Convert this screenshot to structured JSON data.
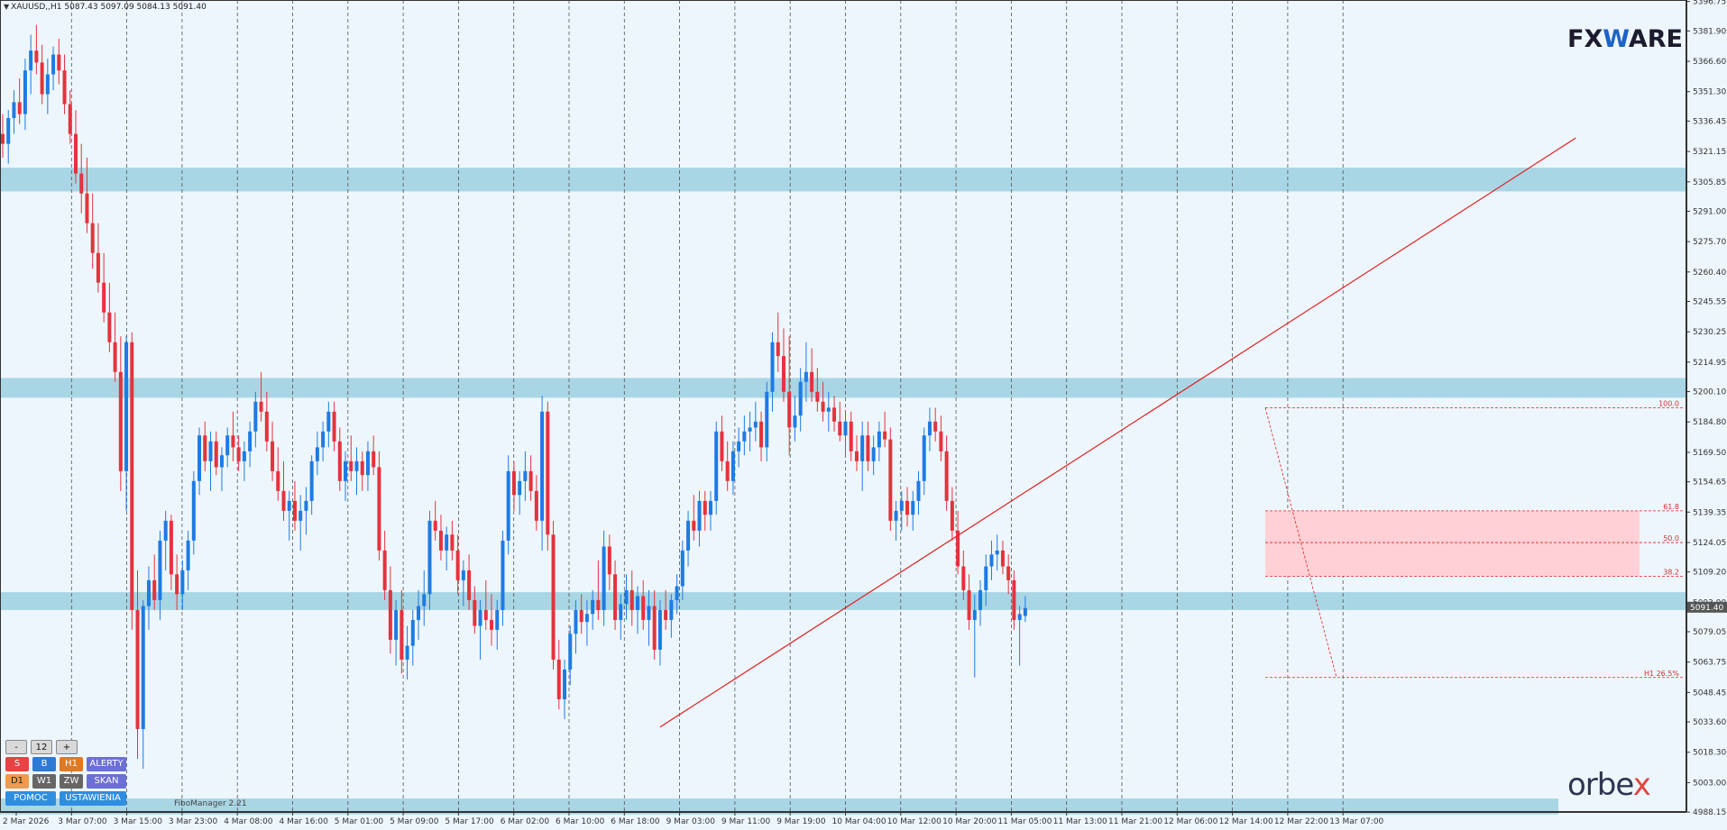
{
  "header": {
    "symbol": "XAUUSD,,H1",
    "ohlc": "5087.43 5097.09 5084.13 5091.40"
  },
  "logos": {
    "brand_top": "FXWARE",
    "brand_top_parts": [
      "FX",
      "W",
      "ARE"
    ],
    "brand_bottom": "orbex",
    "brand_bottom_parts": [
      "orbe",
      "x"
    ]
  },
  "panel": {
    "row1": [
      "-",
      "12",
      "+"
    ],
    "row2": [
      "S",
      "B",
      "H1",
      "ALERTY"
    ],
    "row3": [
      "D1",
      "W1",
      "ZW",
      "SKAN"
    ],
    "row4": [
      "POMOC",
      "USTAWIENIA"
    ]
  },
  "fibo_manager_label": "FiboManager 2.21",
  "colors": {
    "bull": "#1e7be3",
    "bear": "#e5323d",
    "zone": "#a9d6e5",
    "fibo_zone": "#ffd1d6",
    "trendline": "#e02020",
    "grid": "#444444"
  },
  "chart_data": {
    "type": "candlestick",
    "symbol": "XAUUSD",
    "timeframe": "H1",
    "ylim": [
      4988.2,
      5397.5
    ],
    "y_ticks": [
      "5396.75",
      "5381.90",
      "5366.60",
      "5351.30",
      "5336.45",
      "5321.15",
      "5305.85",
      "5291.00",
      "5275.70",
      "5260.40",
      "5245.55",
      "5230.25",
      "5214.95",
      "5200.10",
      "5184.80",
      "5169.50",
      "5154.65",
      "5139.35",
      "5124.05",
      "5109.20",
      "5093.90",
      "5079.05",
      "5063.75",
      "5048.45",
      "5033.60",
      "5018.30",
      "5003.00",
      "4988.15"
    ],
    "current_price": "5091.40",
    "x_labels": [
      "2 Mar 2026",
      "3 Mar 07:00",
      "3 Mar 15:00",
      "3 Mar 23:00",
      "4 Mar 08:00",
      "4 Mar 16:00",
      "5 Mar 01:00",
      "5 Mar 09:00",
      "5 Mar 17:00",
      "6 Mar 02:00",
      "6 Mar 10:00",
      "6 Mar 18:00",
      "9 Mar 03:00",
      "9 Mar 11:00",
      "9 Mar 19:00",
      "10 Mar 04:00",
      "10 Mar 12:00",
      "10 Mar 20:00",
      "11 Mar 05:00",
      "11 Mar 13:00",
      "11 Mar 21:00",
      "12 Mar 06:00",
      "12 Mar 14:00",
      "12 Mar 22:00",
      "13 Mar 07:00"
    ],
    "grid": "vertical-dashed",
    "zones": [
      {
        "low": 5301,
        "high": 5313
      },
      {
        "low": 5197,
        "high": 5207
      },
      {
        "low": 5090,
        "high": 5099
      },
      {
        "low": 4987,
        "high": 4995
      }
    ],
    "fib_levels": [
      {
        "label": "100.0",
        "value": 5192
      },
      {
        "label": "61.8",
        "value": 5140
      },
      {
        "label": "50.0",
        "value": 5124
      },
      {
        "label": "38.2",
        "value": 5107
      },
      {
        "label": "H1 26.5%",
        "value": 5056
      }
    ],
    "fib_zone": {
      "low": 5107,
      "high": 5140
    },
    "trendline": [
      {
        "x": 5031,
        "i": 117
      },
      {
        "x": 5328,
        "i": 280
      }
    ],
    "candles": [
      [
        5330,
        5340,
        5318,
        5325
      ],
      [
        5325,
        5342,
        5315,
        5338
      ],
      [
        5338,
        5352,
        5330,
        5346
      ],
      [
        5346,
        5358,
        5335,
        5340
      ],
      [
        5340,
        5368,
        5332,
        5362
      ],
      [
        5362,
        5380,
        5350,
        5372
      ],
      [
        5372,
        5385,
        5360,
        5366
      ],
      [
        5366,
        5375,
        5345,
        5350
      ],
      [
        5350,
        5368,
        5340,
        5360
      ],
      [
        5360,
        5374,
        5352,
        5370
      ],
      [
        5370,
        5378,
        5355,
        5362
      ],
      [
        5362,
        5370,
        5340,
        5345
      ],
      [
        5345,
        5352,
        5325,
        5330
      ],
      [
        5330,
        5342,
        5305,
        5310
      ],
      [
        5310,
        5325,
        5290,
        5300
      ],
      [
        5300,
        5318,
        5280,
        5285
      ],
      [
        5285,
        5300,
        5262,
        5270
      ],
      [
        5270,
        5285,
        5250,
        5255
      ],
      [
        5255,
        5270,
        5235,
        5240
      ],
      [
        5240,
        5255,
        5220,
        5225
      ],
      [
        5225,
        5240,
        5205,
        5210
      ],
      [
        5210,
        5228,
        5150,
        5160
      ],
      [
        5160,
        5228,
        5140,
        5225
      ],
      [
        5225,
        5230,
        5080,
        5090
      ],
      [
        5090,
        5110,
        5015,
        5030
      ],
      [
        5030,
        5095,
        5010,
        5092
      ],
      [
        5092,
        5112,
        5080,
        5105
      ],
      [
        5105,
        5118,
        5090,
        5095
      ],
      [
        5095,
        5130,
        5085,
        5125
      ],
      [
        5125,
        5140,
        5110,
        5135
      ],
      [
        5135,
        5138,
        5100,
        5108
      ],
      [
        5108,
        5118,
        5090,
        5098
      ],
      [
        5098,
        5115,
        5090,
        5110
      ],
      [
        5110,
        5130,
        5100,
        5125
      ],
      [
        5125,
        5160,
        5118,
        5155
      ],
      [
        5155,
        5182,
        5148,
        5178
      ],
      [
        5178,
        5185,
        5160,
        5165
      ],
      [
        5165,
        5180,
        5150,
        5175
      ],
      [
        5175,
        5180,
        5158,
        5162
      ],
      [
        5162,
        5172,
        5150,
        5168
      ],
      [
        5168,
        5182,
        5162,
        5178
      ],
      [
        5178,
        5190,
        5165,
        5172
      ],
      [
        5172,
        5178,
        5160,
        5165
      ],
      [
        5165,
        5175,
        5155,
        5170
      ],
      [
        5170,
        5185,
        5162,
        5180
      ],
      [
        5180,
        5200,
        5172,
        5195
      ],
      [
        5195,
        5210,
        5185,
        5190
      ],
      [
        5190,
        5200,
        5170,
        5175
      ],
      [
        5175,
        5185,
        5155,
        5160
      ],
      [
        5160,
        5172,
        5145,
        5150
      ],
      [
        5150,
        5165,
        5135,
        5140
      ],
      [
        5140,
        5150,
        5125,
        5145
      ],
      [
        5145,
        5155,
        5130,
        5135
      ],
      [
        5135,
        5148,
        5120,
        5140
      ],
      [
        5140,
        5152,
        5128,
        5145
      ],
      [
        5145,
        5168,
        5138,
        5165
      ],
      [
        5165,
        5180,
        5158,
        5172
      ],
      [
        5172,
        5185,
        5165,
        5180
      ],
      [
        5180,
        5195,
        5172,
        5190
      ],
      [
        5190,
        5195,
        5170,
        5175
      ],
      [
        5175,
        5182,
        5150,
        5155
      ],
      [
        5155,
        5170,
        5145,
        5165
      ],
      [
        5165,
        5178,
        5155,
        5160
      ],
      [
        5160,
        5172,
        5148,
        5165
      ],
      [
        5165,
        5170,
        5150,
        5158
      ],
      [
        5158,
        5175,
        5150,
        5170
      ],
      [
        5170,
        5178,
        5158,
        5162
      ],
      [
        5162,
        5170,
        5115,
        5120
      ],
      [
        5120,
        5130,
        5095,
        5100
      ],
      [
        5100,
        5112,
        5068,
        5075
      ],
      [
        5075,
        5095,
        5062,
        5090
      ],
      [
        5090,
        5100,
        5058,
        5065
      ],
      [
        5065,
        5082,
        5055,
        5072
      ],
      [
        5072,
        5090,
        5062,
        5085
      ],
      [
        5085,
        5100,
        5075,
        5092
      ],
      [
        5092,
        5110,
        5082,
        5098
      ],
      [
        5098,
        5140,
        5090,
        5135
      ],
      [
        5135,
        5145,
        5125,
        5130
      ],
      [
        5130,
        5138,
        5115,
        5120
      ],
      [
        5120,
        5132,
        5110,
        5128
      ],
      [
        5128,
        5135,
        5115,
        5120
      ],
      [
        5120,
        5128,
        5098,
        5105
      ],
      [
        5105,
        5115,
        5092,
        5110
      ],
      [
        5110,
        5118,
        5090,
        5095
      ],
      [
        5095,
        5102,
        5078,
        5082
      ],
      [
        5082,
        5095,
        5065,
        5090
      ],
      [
        5090,
        5105,
        5080,
        5085
      ],
      [
        5085,
        5098,
        5072,
        5080
      ],
      [
        5080,
        5095,
        5070,
        5090
      ],
      [
        5090,
        5130,
        5082,
        5125
      ],
      [
        5125,
        5168,
        5118,
        5160
      ],
      [
        5160,
        5165,
        5140,
        5148
      ],
      [
        5148,
        5160,
        5138,
        5155
      ],
      [
        5155,
        5170,
        5145,
        5160
      ],
      [
        5160,
        5168,
        5145,
        5150
      ],
      [
        5150,
        5158,
        5130,
        5135
      ],
      [
        5135,
        5198,
        5120,
        5190
      ],
      [
        5190,
        5195,
        5120,
        5128
      ],
      [
        5128,
        5135,
        5060,
        5065
      ],
      [
        5065,
        5075,
        5040,
        5045
      ],
      [
        5045,
        5065,
        5035,
        5060
      ],
      [
        5060,
        5082,
        5052,
        5078
      ],
      [
        5078,
        5095,
        5068,
        5090
      ],
      [
        5090,
        5098,
        5078,
        5084
      ],
      [
        5084,
        5095,
        5072,
        5088
      ],
      [
        5088,
        5100,
        5080,
        5095
      ],
      [
        5095,
        5115,
        5085,
        5090
      ],
      [
        5090,
        5130,
        5082,
        5122
      ],
      [
        5122,
        5128,
        5100,
        5108
      ],
      [
        5108,
        5115,
        5080,
        5085
      ],
      [
        5085,
        5098,
        5075,
        5093
      ],
      [
        5093,
        5108,
        5085,
        5100
      ],
      [
        5100,
        5110,
        5082,
        5090
      ],
      [
        5090,
        5102,
        5078,
        5097
      ],
      [
        5097,
        5105,
        5080,
        5085
      ],
      [
        5085,
        5100,
        5072,
        5092
      ],
      [
        5092,
        5100,
        5065,
        5070
      ],
      [
        5070,
        5095,
        5062,
        5090
      ],
      [
        5090,
        5100,
        5080,
        5085
      ],
      [
        5085,
        5098,
        5076,
        5095
      ],
      [
        5095,
        5108,
        5088,
        5102
      ],
      [
        5102,
        5125,
        5095,
        5120
      ],
      [
        5120,
        5140,
        5112,
        5135
      ],
      [
        5135,
        5148,
        5125,
        5130
      ],
      [
        5130,
        5150,
        5122,
        5145
      ],
      [
        5145,
        5150,
        5130,
        5138
      ],
      [
        5138,
        5150,
        5130,
        5145
      ],
      [
        5145,
        5185,
        5138,
        5180
      ],
      [
        5180,
        5188,
        5160,
        5165
      ],
      [
        5165,
        5175,
        5150,
        5155
      ],
      [
        5155,
        5175,
        5148,
        5170
      ],
      [
        5170,
        5182,
        5162,
        5175
      ],
      [
        5175,
        5188,
        5168,
        5180
      ],
      [
        5180,
        5190,
        5170,
        5182
      ],
      [
        5182,
        5195,
        5175,
        5185
      ],
      [
        5185,
        5190,
        5165,
        5172
      ],
      [
        5172,
        5205,
        5165,
        5200
      ],
      [
        5200,
        5230,
        5190,
        5225
      ],
      [
        5225,
        5240,
        5210,
        5218
      ],
      [
        5218,
        5232,
        5195,
        5200
      ],
      [
        5200,
        5228,
        5168,
        5182
      ],
      [
        5182,
        5198,
        5175,
        5188
      ],
      [
        5188,
        5212,
        5180,
        5205
      ],
      [
        5205,
        5225,
        5195,
        5210
      ],
      [
        5210,
        5222,
        5195,
        5200
      ],
      [
        5200,
        5212,
        5190,
        5195
      ],
      [
        5195,
        5205,
        5185,
        5190
      ],
      [
        5190,
        5200,
        5180,
        5192
      ],
      [
        5192,
        5198,
        5180,
        5185
      ],
      [
        5185,
        5195,
        5175,
        5178
      ],
      [
        5178,
        5190,
        5168,
        5185
      ],
      [
        5185,
        5190,
        5165,
        5170
      ],
      [
        5170,
        5178,
        5160,
        5165
      ],
      [
        5165,
        5185,
        5150,
        5178
      ],
      [
        5178,
        5185,
        5160,
        5165
      ],
      [
        5165,
        5178,
        5158,
        5172
      ],
      [
        5172,
        5185,
        5165,
        5180
      ],
      [
        5180,
        5190,
        5172,
        5176
      ],
      [
        5176,
        5182,
        5130,
        5135
      ],
      [
        5135,
        5145,
        5125,
        5140
      ],
      [
        5140,
        5150,
        5130,
        5145
      ],
      [
        5145,
        5152,
        5132,
        5138
      ],
      [
        5138,
        5150,
        5130,
        5145
      ],
      [
        5145,
        5160,
        5138,
        5155
      ],
      [
        5155,
        5182,
        5148,
        5178
      ],
      [
        5178,
        5192,
        5170,
        5185
      ],
      [
        5185,
        5192,
        5175,
        5180
      ],
      [
        5180,
        5188,
        5165,
        5170
      ],
      [
        5170,
        5178,
        5140,
        5145
      ],
      [
        5145,
        5152,
        5125,
        5130
      ],
      [
        5130,
        5140,
        5108,
        5112
      ],
      [
        5112,
        5120,
        5095,
        5100
      ],
      [
        5100,
        5108,
        5080,
        5085
      ],
      [
        5085,
        5098,
        5056,
        5090
      ],
      [
        5090,
        5105,
        5082,
        5100
      ],
      [
        5100,
        5118,
        5092,
        5112
      ],
      [
        5112,
        5125,
        5105,
        5118
      ],
      [
        5118,
        5128,
        5110,
        5120
      ],
      [
        5120,
        5125,
        5108,
        5112
      ],
      [
        5112,
        5118,
        5098,
        5105
      ],
      [
        5105,
        5110,
        5080,
        5085
      ],
      [
        5085,
        5092,
        5062,
        5088
      ],
      [
        5087,
        5097,
        5084,
        5091
      ]
    ]
  }
}
